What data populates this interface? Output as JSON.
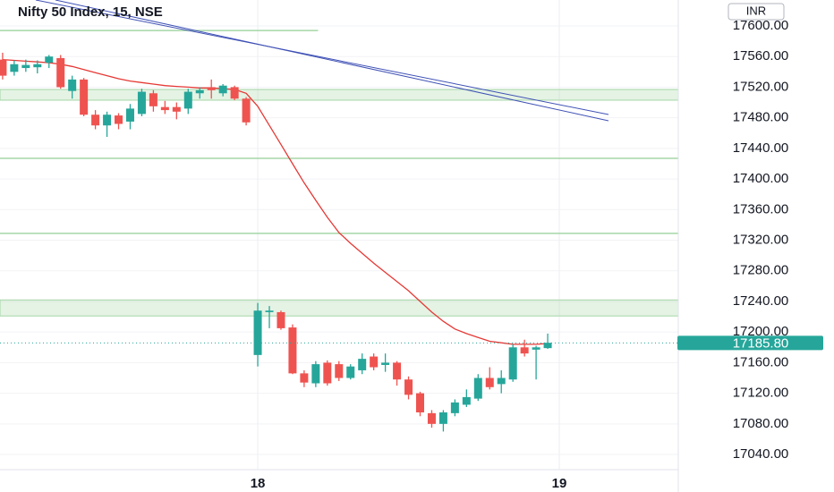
{
  "chart_data": {
    "type": "candlestick",
    "title": "Nifty 50 Index, 15, NSE",
    "currency": "INR",
    "x": [
      2,
      3,
      4,
      5,
      6,
      7,
      8,
      9,
      10,
      11,
      12,
      13,
      14,
      15,
      16,
      17,
      18,
      19,
      20,
      21,
      22,
      23,
      24,
      25,
      26,
      27,
      28,
      29,
      30,
      31,
      32,
      33,
      34,
      35,
      36,
      37,
      38,
      39,
      40,
      41,
      42,
      43,
      44,
      45,
      46,
      47,
      48,
      49
    ],
    "open": [
      17556,
      17540,
      17545,
      17546,
      17552,
      17558,
      17515,
      17530,
      17484,
      17470,
      17483,
      17475,
      17485,
      17512,
      17494,
      17494,
      17492,
      17512,
      17520,
      17512,
      17520,
      17505,
      17170,
      17226,
      17226,
      17206,
      17146,
      17133,
      17160,
      17158,
      17140,
      17150,
      17168,
      17157,
      17160,
      17138,
      17120,
      17094,
      17080,
      17094,
      17105,
      17113,
      17140,
      17132,
      17138,
      17180,
      17177,
      17179
    ],
    "high": [
      17565,
      17555,
      17556,
      17555,
      17562,
      17562,
      17535,
      17532,
      17490,
      17488,
      17486,
      17498,
      17518,
      17516,
      17502,
      17500,
      17518,
      17520,
      17530,
      17524,
      17522,
      17507,
      17238,
      17234,
      17228,
      17210,
      17150,
      17162,
      17163,
      17162,
      17158,
      17172,
      17172,
      17172,
      17162,
      17142,
      17122,
      17098,
      17098,
      17112,
      17125,
      17145,
      17154,
      17150,
      17184,
      17190,
      17182,
      17198
    ],
    "low": [
      17530,
      17535,
      17540,
      17538,
      17545,
      17518,
      17505,
      17482,
      17465,
      17455,
      17465,
      17465,
      17482,
      17488,
      17485,
      17478,
      17485,
      17505,
      17505,
      17508,
      17503,
      17470,
      17155,
      17205,
      17203,
      17145,
      17128,
      17128,
      17130,
      17136,
      17138,
      17145,
      17150,
      17148,
      17130,
      17112,
      17090,
      17075,
      17070,
      17090,
      17102,
      17110,
      17125,
      17120,
      17135,
      17168,
      17138,
      17178
    ],
    "close": [
      17535,
      17550,
      17549,
      17550,
      17560,
      17520,
      17530,
      17484,
      17470,
      17484,
      17472,
      17492,
      17514,
      17495,
      17490,
      17488,
      17514,
      17516,
      17516,
      17522,
      17505,
      17474,
      17228,
      17228,
      17205,
      17146,
      17134,
      17158,
      17133,
      17140,
      17155,
      17165,
      17154,
      17160,
      17138,
      17118,
      17095,
      17080,
      17095,
      17108,
      17115,
      17140,
      17128,
      17140,
      17180,
      17172,
      17180,
      17186
    ],
    "up_color": "#26a69a",
    "down_color": "#ef5350",
    "moving_average": {
      "color": "#e53935",
      "values": [
        17556,
        17555,
        17554,
        17553,
        17552,
        17550,
        17547,
        17543,
        17539,
        17535,
        17531,
        17528,
        17526,
        17524,
        17522,
        17521,
        17520,
        17519,
        17519,
        17518,
        17517,
        17512,
        17495,
        17470,
        17445,
        17420,
        17395,
        17372,
        17350,
        17330,
        17316,
        17303,
        17290,
        17278,
        17266,
        17254,
        17240,
        17226,
        17214,
        17204,
        17198,
        17193,
        17188,
        17186,
        17184,
        17184,
        17184,
        17185
      ]
    },
    "zones": [
      {
        "from": 17503,
        "to": 17517
      },
      {
        "from": 17221,
        "to": 17242
      }
    ],
    "levels": [
      {
        "value": 17594,
        "x_to": 29.2
      },
      {
        "value": 17427
      },
      {
        "value": 17329
      }
    ],
    "zone_color": "#a5d6a7",
    "last_price": {
      "value": 17185.8,
      "label": "17185.80"
    },
    "xlim": [
      1.775,
      60.26
    ],
    "ylim": [
      17020.2,
      17633.9
    ],
    "xticks": [
      {
        "value": 24,
        "label": "18"
      },
      {
        "value": 50,
        "label": "19"
      }
    ],
    "yticks": [
      {
        "value": 17040,
        "label": "17040.00"
      },
      {
        "value": 17080,
        "label": "17080.00"
      },
      {
        "value": 17120,
        "label": "17120.00"
      },
      {
        "value": 17160,
        "label": "17160.00"
      },
      {
        "value": 17200,
        "label": "17200.00"
      },
      {
        "value": 17240,
        "label": "17240.00"
      },
      {
        "value": 17280,
        "label": "17280.00"
      },
      {
        "value": 17320,
        "label": "17320.00"
      },
      {
        "value": 17360,
        "label": "17360.00"
      },
      {
        "value": 17400,
        "label": "17400.00"
      },
      {
        "value": 17440,
        "label": "17440.00"
      },
      {
        "value": 17480,
        "label": "17480.00"
      },
      {
        "value": 17520,
        "label": "17520.00"
      },
      {
        "value": 17560,
        "label": "17560.00"
      },
      {
        "value": 17600,
        "label": "17600.00"
      }
    ],
    "grid": true
  }
}
